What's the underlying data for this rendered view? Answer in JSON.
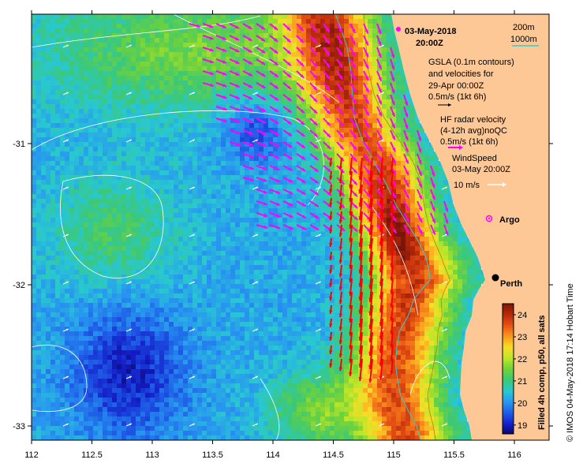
{
  "date_title": "03-May-2018",
  "time_title": "20:00Z",
  "depth_legend": [
    "200m",
    "1000m"
  ],
  "gsla_legend": {
    "lines": [
      "GSLA (0.1m contours)",
      "and velocities for",
      "29-Apr 00:00Z"
    ],
    "scale_text": "0.5m/s (1kt 6h)"
  },
  "hf_legend": {
    "lines": [
      "HF radar velocity",
      "(4-12h avg)noQC"
    ],
    "scale_text": "0.5m/s (1kt 6h)"
  },
  "wind_legend": {
    "lines": [
      "WindSpeed",
      "03-May 20:00Z"
    ],
    "scale_text": "10 m/s"
  },
  "argo_label": "Argo",
  "city_label": "Perth",
  "colorbar": {
    "ticks": [
      19,
      20,
      21,
      22,
      23,
      24
    ],
    "range": [
      18.6,
      24.5
    ],
    "label": "Filled 4h comp, p50, all sats"
  },
  "credit": "© IMOS 04-May-2018 17:14 Hobart Time",
  "x_ticks": [
    {
      "v": 112,
      "t": "112"
    },
    {
      "v": 112.5,
      "t": "112.5"
    },
    {
      "v": 113,
      "t": "113"
    },
    {
      "v": 113.5,
      "t": "113.5"
    },
    {
      "v": 114,
      "t": "114"
    },
    {
      "v": 114.5,
      "t": "114.5"
    },
    {
      "v": 115,
      "t": "115"
    },
    {
      "v": 115.5,
      "t": "115.5"
    },
    {
      "v": 116,
      "t": "116"
    }
  ],
  "y_ticks": [
    {
      "v": -31,
      "t": "-31"
    },
    {
      "v": -32,
      "t": "-32"
    },
    {
      "v": -33,
      "t": "-33"
    }
  ],
  "lon_range": [
    112,
    116.25
  ],
  "lat_range": [
    -33.1,
    -30.1
  ],
  "colors": {
    "land": "#fdc896",
    "radar_arrows": "#ff00ff",
    "hf_arrows": "#ff0000",
    "wind_arrows": "#ffffff",
    "isobath_200": "#aa8800",
    "isobath_1000": "#33cccc"
  }
}
